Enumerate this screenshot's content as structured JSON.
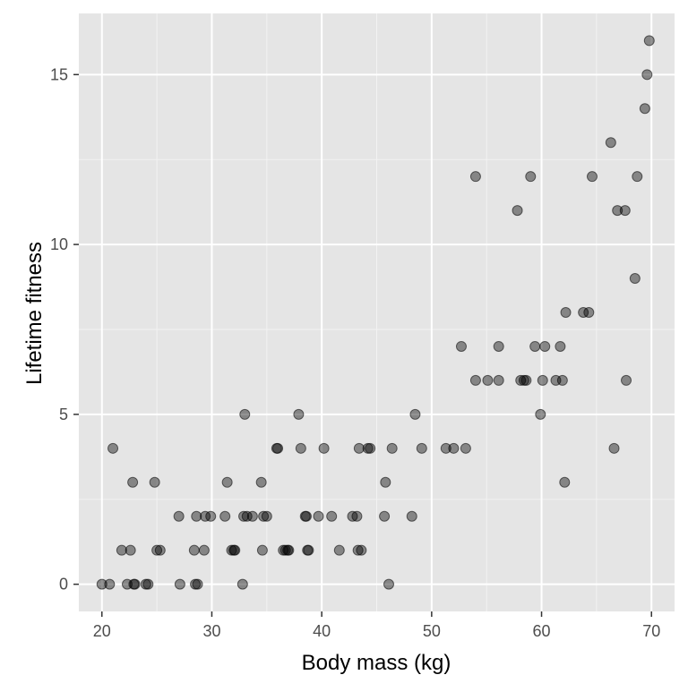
{
  "chart_data": {
    "type": "scatter",
    "title": "",
    "xlabel": "Body mass (kg)",
    "ylabel": "Lifetime fitness",
    "xlim": [
      17.9,
      72.1
    ],
    "ylim": [
      -0.8,
      16.8
    ],
    "xticks": [
      20,
      30,
      40,
      50,
      60,
      70
    ],
    "xtick_labels": [
      "20",
      "30",
      "40",
      "50",
      "60",
      "70"
    ],
    "yticks": [
      0,
      5,
      10,
      15
    ],
    "ytick_labels": [
      "0",
      "5",
      "10",
      "15"
    ],
    "grid": true,
    "legend": "none",
    "colors": {
      "panel": "#e5e5e5",
      "grid_major": "#ffffff",
      "grid_minor": "#f2f2f2",
      "point": "#000000",
      "tick": "#333333"
    },
    "x": [
      20.0,
      20.7,
      21.0,
      21.8,
      22.3,
      22.6,
      22.8,
      22.9,
      23.0,
      24.0,
      24.2,
      24.8,
      25.0,
      25.3,
      27.0,
      27.1,
      28.4,
      28.5,
      28.6,
      28.7,
      29.3,
      29.4,
      29.9,
      31.2,
      31.4,
      31.8,
      32.0,
      32.1,
      32.8,
      32.9,
      33.0,
      33.2,
      33.7,
      34.5,
      34.6,
      34.7,
      35.0,
      35.9,
      36.0,
      36.5,
      36.7,
      36.9,
      37.0,
      37.9,
      38.1,
      38.5,
      38.6,
      38.7,
      38.8,
      39.7,
      40.2,
      40.9,
      41.6,
      42.8,
      43.2,
      43.3,
      43.4,
      43.6,
      44.2,
      44.4,
      45.7,
      45.8,
      46.1,
      46.4,
      48.2,
      48.5,
      49.1,
      51.3,
      52.0,
      52.7,
      53.1,
      54.0,
      54.0,
      55.1,
      56.1,
      56.1,
      57.8,
      58.1,
      58.4,
      58.6,
      59.0,
      59.4,
      59.9,
      60.1,
      60.3,
      61.3,
      61.7,
      61.9,
      62.1,
      62.2,
      63.8,
      64.3,
      64.6,
      66.3,
      66.6,
      66.9,
      67.6,
      67.7,
      68.5,
      68.7,
      69.4,
      69.6,
      69.8
    ],
    "y": [
      0,
      0,
      4,
      1,
      0,
      1,
      3,
      0,
      0,
      0,
      0,
      3,
      1,
      1,
      2,
      0,
      1,
      0,
      2,
      0,
      1,
      2,
      2,
      2,
      3,
      1,
      1,
      1,
      0,
      2,
      5,
      2,
      2,
      3,
      1,
      2,
      2,
      4,
      4,
      1,
      1,
      1,
      1,
      5,
      4,
      2,
      2,
      1,
      1,
      2,
      4,
      2,
      1,
      2,
      2,
      1,
      4,
      1,
      4,
      4,
      2,
      3,
      0,
      4,
      2,
      5,
      4,
      4,
      4,
      7,
      4,
      6,
      12,
      6,
      7,
      6,
      11,
      6,
      6,
      6,
      12,
      7,
      5,
      6,
      7,
      6,
      7,
      6,
      3,
      8,
      8,
      8,
      12,
      13,
      4,
      11,
      11,
      6,
      9,
      12,
      14,
      15,
      16
    ]
  }
}
